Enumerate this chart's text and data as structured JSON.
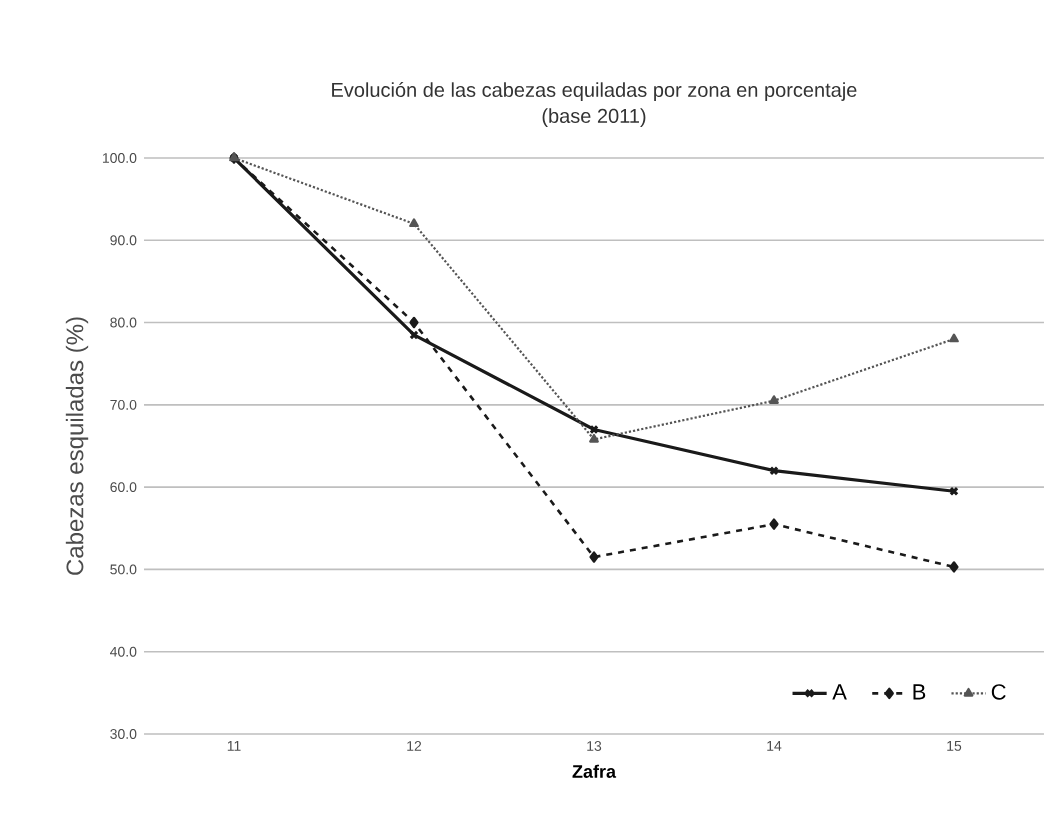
{
  "chart_data": {
    "type": "line",
    "title": "Evolución de las cabezas equiladas por zona en porcentaje",
    "subtitle": "(base 2011)",
    "xlabel": "Zafra",
    "ylabel": "Cabezas esquiladas (%)",
    "categories": [
      "11",
      "12",
      "13",
      "14",
      "15"
    ],
    "series": [
      {
        "name": "A",
        "color": "#1a1a1a",
        "line_style": "solid",
        "marker": "cross",
        "values": [
          100,
          78.5,
          67,
          62,
          59.5
        ]
      },
      {
        "name": "B",
        "color": "#1a1a1a",
        "line_style": "dashed",
        "marker": "diamond",
        "values": [
          100,
          80,
          51.5,
          55.5,
          50.3
        ]
      },
      {
        "name": "C",
        "color": "#555555",
        "line_style": "dotted",
        "marker": "triangle",
        "values": [
          100,
          92,
          65.8,
          70.5,
          78
        ]
      }
    ],
    "ylim": [
      30,
      100
    ],
    "yticks": [
      {
        "value": 30,
        "label": "30.0"
      },
      {
        "value": 40,
        "label": "40.0"
      },
      {
        "value": 50,
        "label": "50.0"
      },
      {
        "value": 60,
        "label": "60.0"
      },
      {
        "value": 70,
        "label": "70.0"
      },
      {
        "value": 80,
        "label": "80.0"
      },
      {
        "value": 90,
        "label": "90.0"
      },
      {
        "value": 100,
        "label": "100.0"
      }
    ],
    "grid": "y",
    "legend": "bottom right"
  }
}
